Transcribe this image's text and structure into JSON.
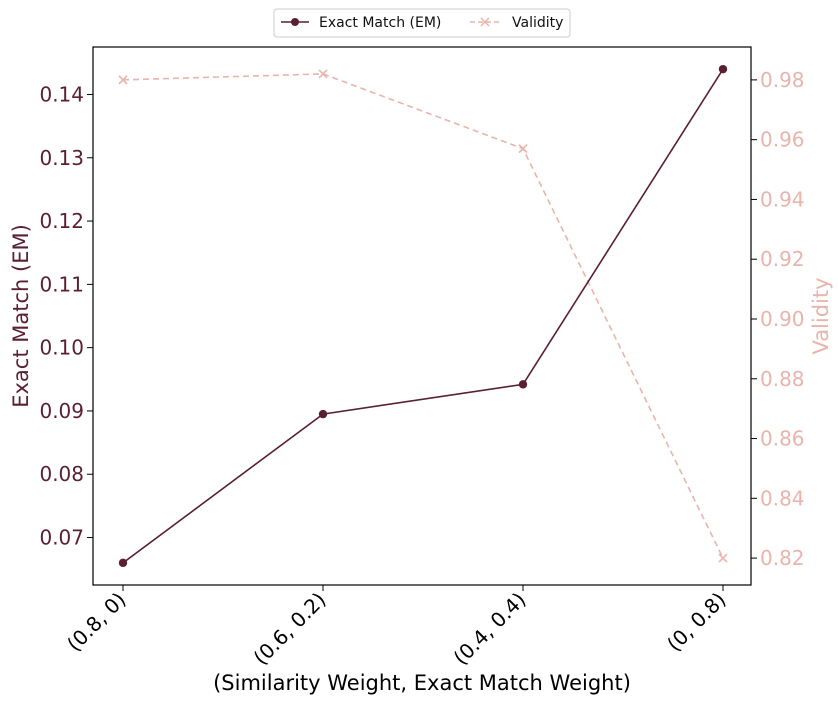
{
  "colors": {
    "em": "#5a1f33",
    "validity": "#e8b4ac",
    "axis": "#000000",
    "background": "#ffffff"
  },
  "chart_data": {
    "type": "line",
    "xlabel": "(Similarity Weight, Exact Match Weight)",
    "categories": [
      "(0.8, 0)",
      "(0.6, 0.2)",
      "(0.4, 0.4)",
      "(0, 0.8)"
    ],
    "legend_position": "top-center",
    "grid": false,
    "series": [
      {
        "name": "Exact Match (EM)",
        "axis": "left",
        "marker": "circle",
        "line_style": "solid",
        "values": [
          0.066,
          0.0895,
          0.0942,
          0.144
        ]
      },
      {
        "name": "Validity",
        "axis": "right",
        "marker": "x",
        "line_style": "dashed",
        "values": [
          0.98,
          0.982,
          0.957,
          0.82
        ]
      }
    ],
    "y_left": {
      "label": "Exact Match (EM)",
      "ylim": [
        0.0625,
        0.1475
      ],
      "ticks": [
        "0.07",
        "0.08",
        "0.09",
        "0.10",
        "0.11",
        "0.12",
        "0.13",
        "0.14"
      ]
    },
    "y_right": {
      "label": "Validity",
      "ylim": [
        0.811,
        0.991
      ],
      "ticks": [
        "0.82",
        "0.84",
        "0.86",
        "0.88",
        "0.90",
        "0.92",
        "0.94",
        "0.96",
        "0.98"
      ]
    }
  }
}
